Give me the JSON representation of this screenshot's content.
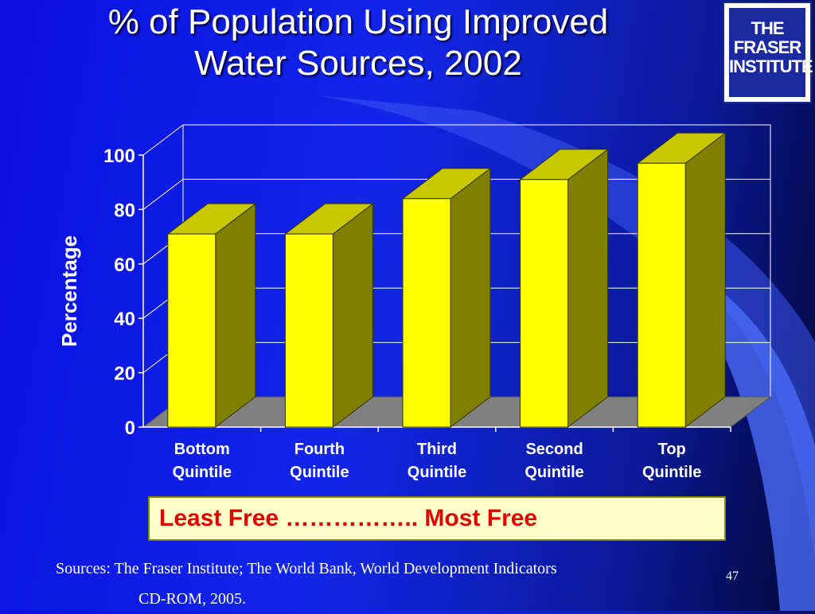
{
  "slide": {
    "title_line1": "% of Population Using Improved",
    "title_line2": "Water Sources, 2002",
    "logo_line1": "THE FRASER",
    "logo_line2": "INSTITUTE",
    "banner": "Least Free …………….. Most Free",
    "sources_line1": "Sources: The Fraser Institute; The World Bank, World Development Indicators",
    "sources_line2": "CD-ROM, 2005.",
    "page_number": "47"
  },
  "colors": {
    "bar_front": "#ffff00",
    "bar_side": "#808000",
    "bar_top": "#c8c800",
    "floor": "#808080",
    "grid": "#ffffff",
    "banner_text": "#e00000"
  },
  "chart_data": {
    "type": "bar",
    "title": "",
    "ylabel": "Percentage",
    "xlabel": "",
    "categories": [
      "Bottom Quintile",
      "Fourth Quintile",
      "Third Quintile",
      "Second Quintile",
      "Top Quintile"
    ],
    "category_lines": [
      [
        "Bottom",
        "Quintile"
      ],
      [
        "Fourth",
        "Quintile"
      ],
      [
        "Third",
        "Quintile"
      ],
      [
        "Second",
        "Quintile"
      ],
      [
        "Top",
        "Quintile"
      ]
    ],
    "values": [
      71,
      71,
      84,
      91,
      97
    ],
    "ylim": [
      0,
      100
    ],
    "yticks": [
      0,
      20,
      40,
      60,
      80,
      100
    ],
    "grid": true,
    "three_d": true,
    "legend": "none"
  }
}
